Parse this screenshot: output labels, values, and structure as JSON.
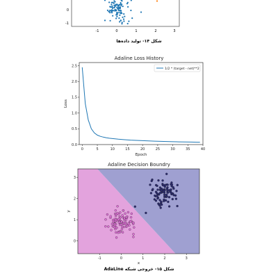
{
  "captions": {
    "fig14": "شکل ۱۴- تولید داده‌ها",
    "fig15": "شکل ۱۵- خروجی شبکه AdaLine"
  },
  "top_figure": {
    "x_ticks": [
      "-1",
      "0",
      "1",
      "2",
      "3"
    ],
    "y_ticks": [
      "0",
      "-1"
    ],
    "colors": {
      "cluster": "#1f77b4",
      "outlier": "#ff7f0e"
    }
  },
  "chart_data": [
    {
      "type": "line",
      "title": "Adaline Loss History",
      "xlabel": "Epoch",
      "ylabel": "Loss",
      "xlim": [
        -1,
        40
      ],
      "ylim": [
        0,
        2.6
      ],
      "x_ticks": [
        0,
        5,
        10,
        15,
        20,
        25,
        30,
        35,
        40
      ],
      "y_ticks": [
        0.0,
        0.5,
        1.0,
        1.5,
        2.0,
        2.5
      ],
      "legend_position": "top-right",
      "series": [
        {
          "name": "1/2 * (target - net)**2",
          "color": "#1f77b4",
          "x": [
            0,
            1,
            2,
            3,
            4,
            5,
            6,
            7,
            8,
            9,
            10,
            12,
            14,
            16,
            18,
            20,
            22,
            24,
            26,
            28,
            30,
            32,
            34,
            36,
            38,
            39
          ],
          "y": [
            2.45,
            1.3,
            0.78,
            0.5,
            0.37,
            0.3,
            0.26,
            0.235,
            0.215,
            0.2,
            0.19,
            0.17,
            0.155,
            0.142,
            0.132,
            0.123,
            0.115,
            0.108,
            0.102,
            0.096,
            0.091,
            0.087,
            0.083,
            0.079,
            0.076,
            0.074
          ]
        }
      ]
    },
    {
      "type": "scatter",
      "title": "Adaline Decision Boundry",
      "xlabel": "x",
      "ylabel": "y",
      "xlim": [
        -2,
        3.6
      ],
      "ylim": [
        -0.6,
        3.4
      ],
      "x_ticks": [
        -1,
        0,
        1,
        2,
        3
      ],
      "y_ticks": [
        0,
        1,
        2,
        3
      ],
      "regions": [
        {
          "name": "class-0-region",
          "color": "#e3a3dd"
        },
        {
          "name": "class-1-region",
          "color": "#9fa0d1"
        }
      ],
      "boundary": {
        "x1": -1.1,
        "y1": 3.4,
        "x2": 2.5,
        "y2": -0.6
      },
      "series": [
        {
          "name": "",
          "color": "#e070d8",
          "center": [
            0.0,
            0.9
          ],
          "spread": [
            0.32,
            0.3
          ],
          "n": 100
        },
        {
          "name": "",
          "color": "#2a2a70",
          "center": [
            2.0,
            2.3
          ],
          "spread": [
            0.32,
            0.28
          ],
          "n": 100
        }
      ]
    }
  ]
}
